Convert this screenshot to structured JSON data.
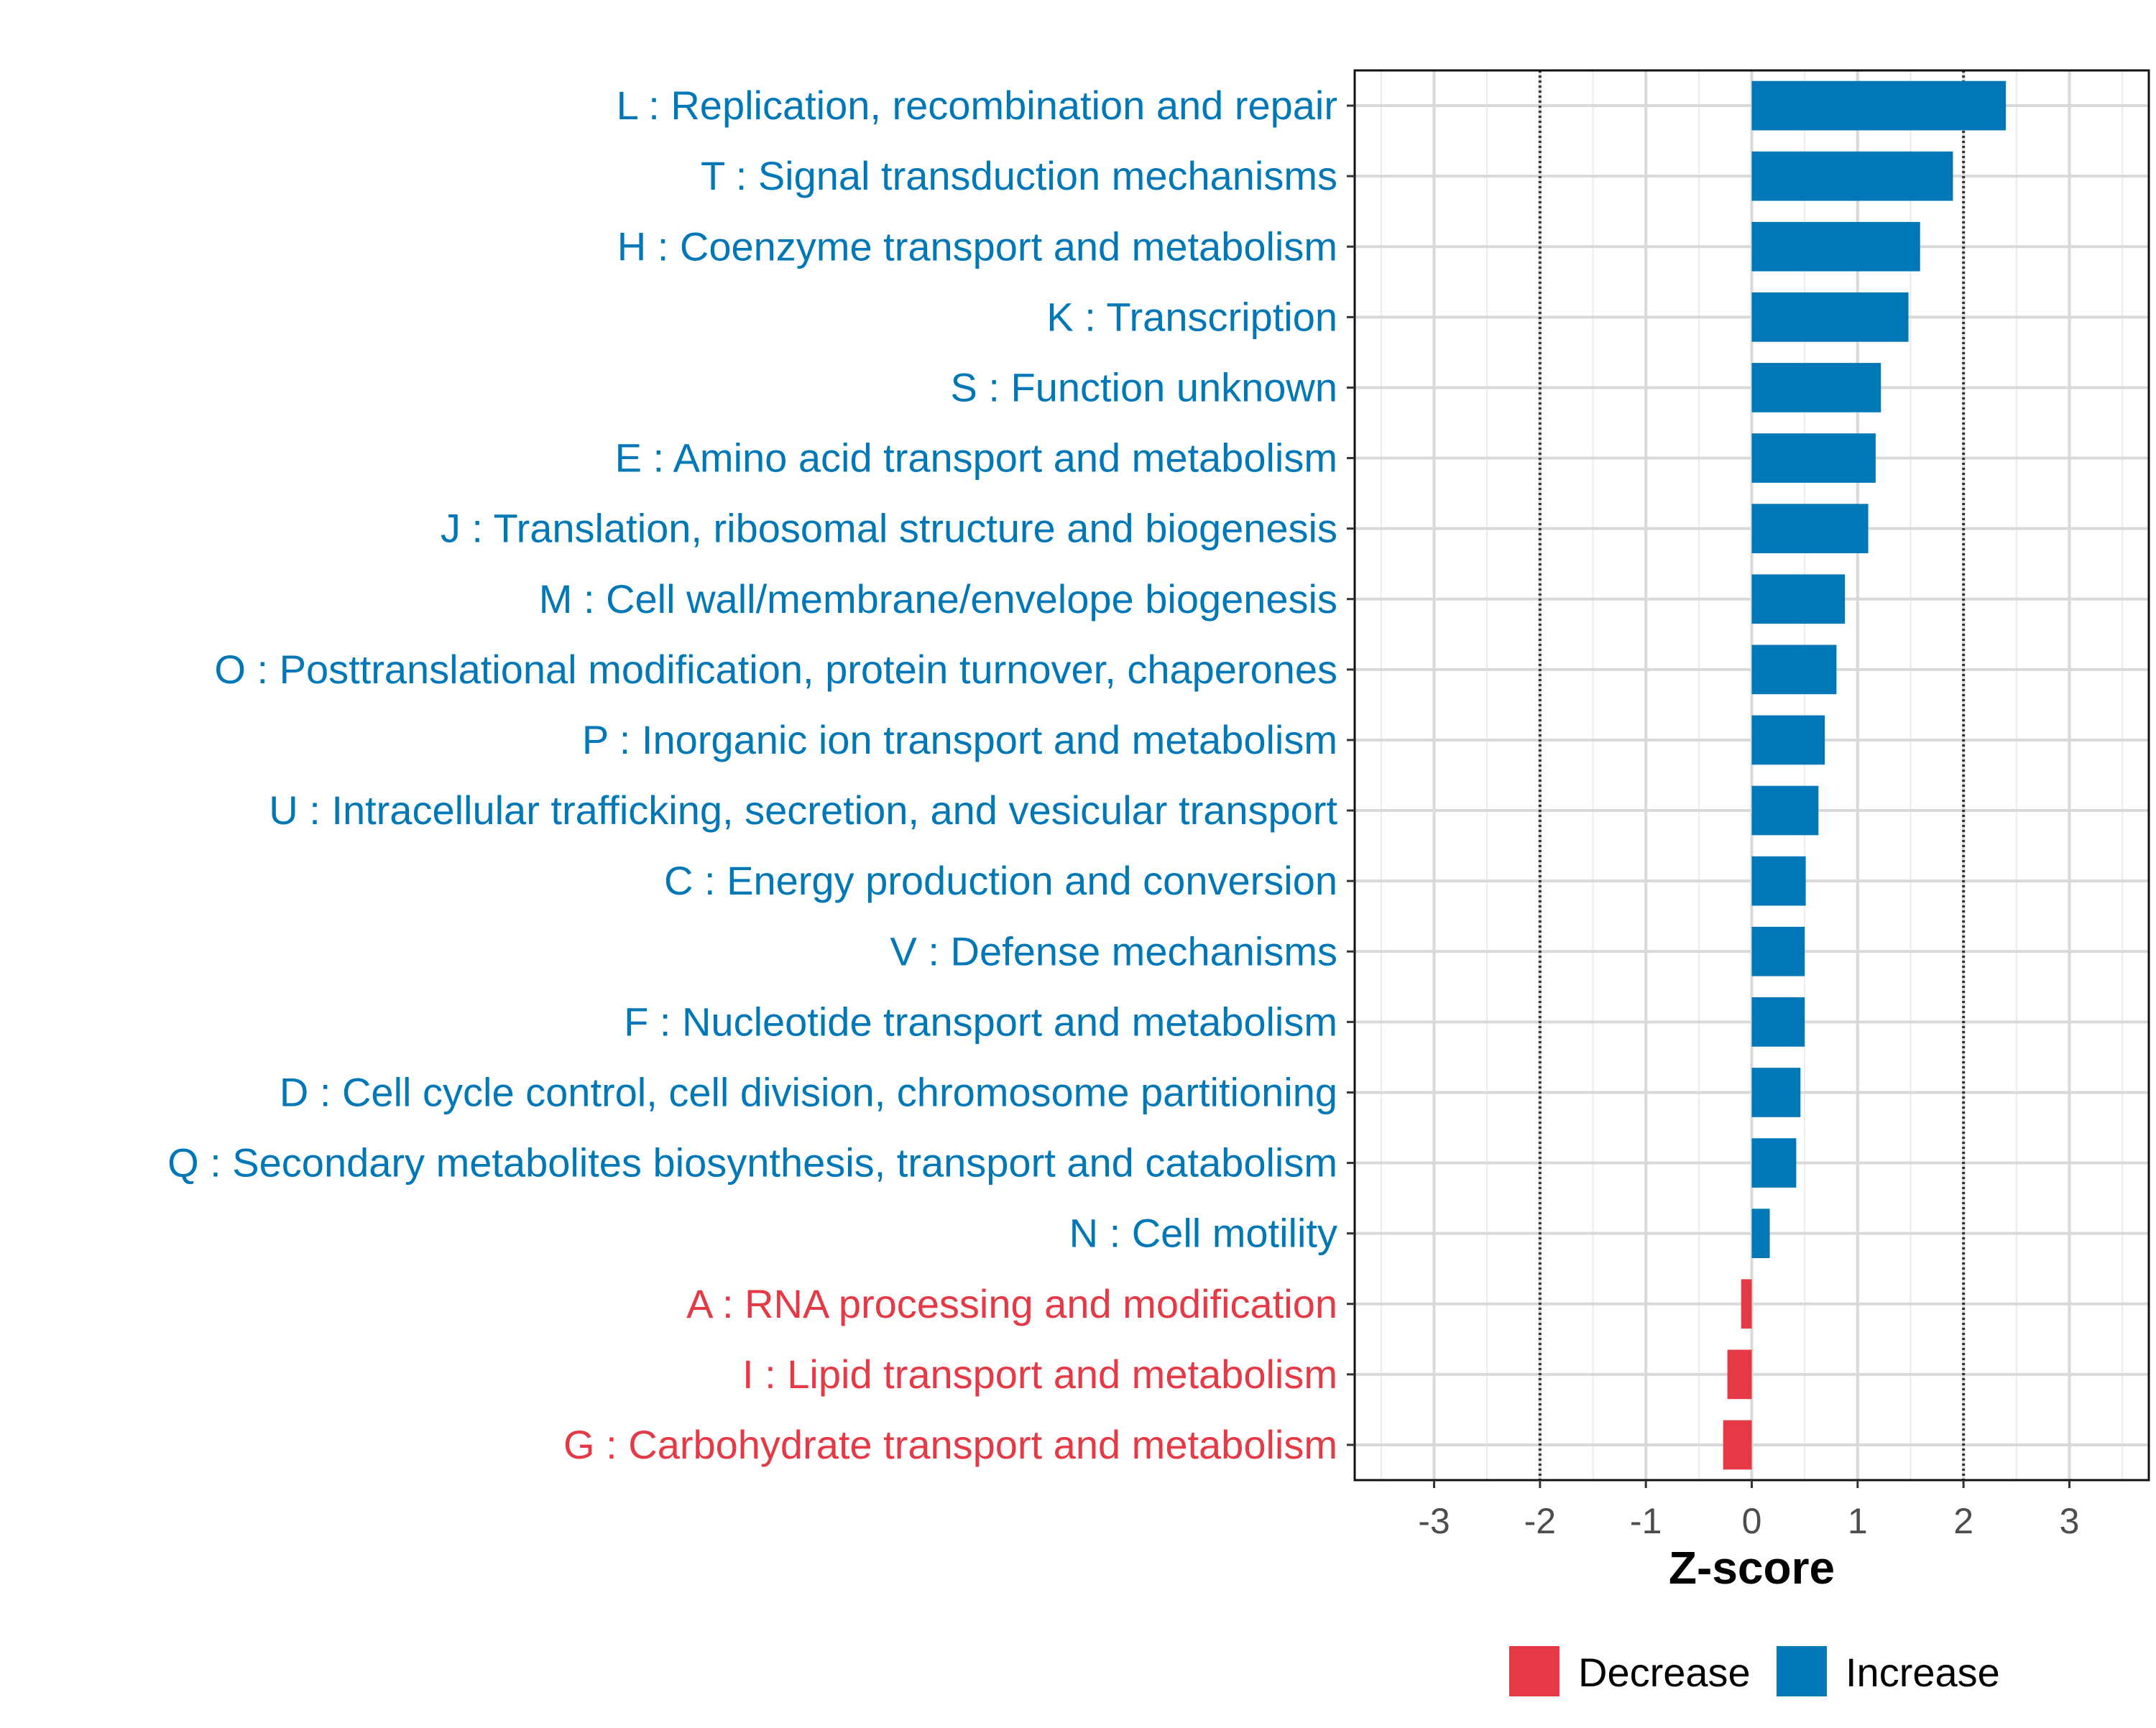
{
  "chart_data": {
    "type": "bar",
    "orientation": "horizontal",
    "xlabel": "Z-score",
    "xlim": [
      -3.75,
      3.75
    ],
    "xticks": [
      -3,
      -2,
      -1,
      0,
      1,
      2,
      3
    ],
    "reference_lines": [
      -2,
      2
    ],
    "grid": true,
    "legend_position": "bottom",
    "legend": [
      {
        "label": "Decrease",
        "color": "#E63946"
      },
      {
        "label": "Increase",
        "color": "#0077B6"
      }
    ],
    "colors": {
      "Decrease": "#E63946",
      "Increase": "#0077B6"
    },
    "categories": [
      "L : Replication, recombination and repair",
      "T : Signal transduction mechanisms",
      "H : Coenzyme transport and metabolism",
      "K : Transcription",
      "S : Function unknown",
      "E : Amino acid transport and metabolism",
      "J : Translation, ribosomal structure and biogenesis",
      "M : Cell wall/membrane/envelope biogenesis",
      "O : Posttranslational modification, protein turnover, chaperones",
      "P : Inorganic ion transport and metabolism",
      "U : Intracellular trafficking, secretion, and vesicular transport",
      "C : Energy production and conversion",
      "V : Defense mechanisms",
      "F : Nucleotide transport and metabolism",
      "D : Cell cycle control, cell division, chromosome partitioning",
      "Q : Secondary metabolites biosynthesis, transport and catabolism",
      "N : Cell motility",
      "A : RNA processing and modification",
      "I : Lipid transport and metabolism",
      "G : Carbohydrate transport and metabolism"
    ],
    "values": [
      2.4,
      1.9,
      1.59,
      1.48,
      1.22,
      1.17,
      1.1,
      0.88,
      0.8,
      0.69,
      0.63,
      0.51,
      0.5,
      0.5,
      0.46,
      0.42,
      0.17,
      -0.1,
      -0.23,
      -0.27
    ],
    "groups": [
      "Increase",
      "Increase",
      "Increase",
      "Increase",
      "Increase",
      "Increase",
      "Increase",
      "Increase",
      "Increase",
      "Increase",
      "Increase",
      "Increase",
      "Increase",
      "Increase",
      "Increase",
      "Increase",
      "Increase",
      "Decrease",
      "Decrease",
      "Decrease"
    ]
  }
}
